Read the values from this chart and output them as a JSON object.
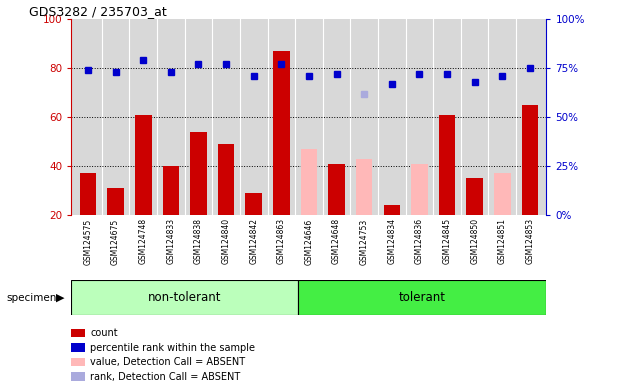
{
  "title": "GDS3282 / 235703_at",
  "samples": [
    "GSM124575",
    "GSM124675",
    "GSM124748",
    "GSM124833",
    "GSM124838",
    "GSM124840",
    "GSM124842",
    "GSM124863",
    "GSM124646",
    "GSM124648",
    "GSM124753",
    "GSM124834",
    "GSM124836",
    "GSM124845",
    "GSM124850",
    "GSM124851",
    "GSM124853"
  ],
  "n_nontolerant": 8,
  "count": [
    37,
    31,
    61,
    40,
    54,
    49,
    29,
    87,
    null,
    41,
    null,
    24,
    null,
    61,
    35,
    null,
    65
  ],
  "count_absent": [
    null,
    null,
    null,
    null,
    null,
    null,
    null,
    null,
    47,
    null,
    43,
    null,
    41,
    null,
    null,
    37,
    null
  ],
  "percentile_rank": [
    74,
    73,
    79,
    73,
    77,
    77,
    71,
    77,
    71,
    72,
    null,
    67,
    72,
    72,
    68,
    71,
    75
  ],
  "rank_absent": [
    null,
    null,
    null,
    null,
    null,
    null,
    null,
    null,
    null,
    null,
    62,
    null,
    null,
    null,
    null,
    null,
    null
  ],
  "ylim_left": [
    20,
    100
  ],
  "ylim_right": [
    0,
    100
  ],
  "yticks_left": [
    20,
    40,
    60,
    80,
    100
  ],
  "yticks_right": [
    0,
    25,
    50,
    75,
    100
  ],
  "grid_values": [
    80,
    60,
    40
  ],
  "color_count": "#cc0000",
  "color_count_absent": "#ffb8b8",
  "color_rank": "#0000cc",
  "color_rank_absent": "#aaaadd",
  "color_group_nontolerant": "#bbffbb",
  "color_group_tolerant": "#44ee44",
  "color_bg": "#d8d8d8",
  "legend_items": [
    "count",
    "percentile rank within the sample",
    "value, Detection Call = ABSENT",
    "rank, Detection Call = ABSENT"
  ],
  "legend_colors": [
    "#cc0000",
    "#0000cc",
    "#ffb8b8",
    "#aaaadd"
  ]
}
